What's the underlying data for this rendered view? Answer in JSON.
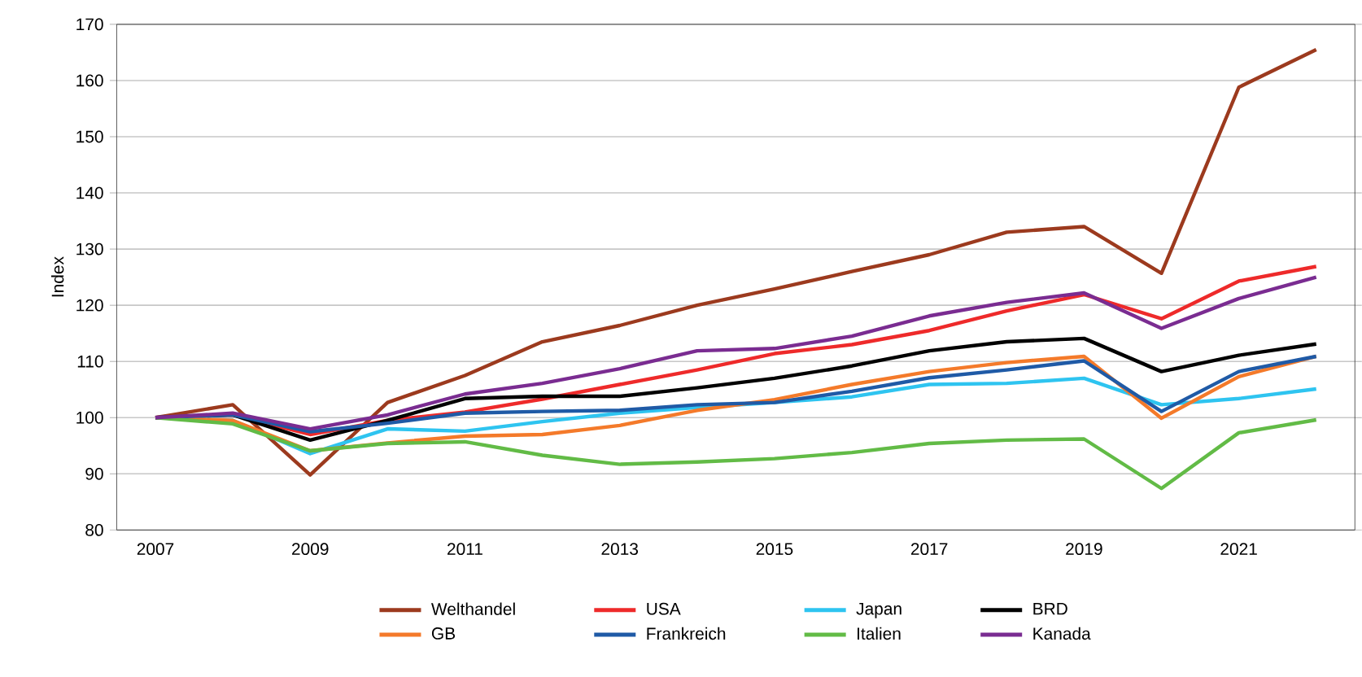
{
  "chart_data": {
    "type": "line",
    "ylabel": "Index",
    "categories": [
      "2007",
      null,
      "2009",
      null,
      "2011",
      null,
      "2013",
      null,
      "2015",
      null,
      "2017",
      null,
      "2019",
      null,
      "2021",
      null
    ],
    "ylim": [
      80,
      170
    ],
    "yticks": [
      80,
      90,
      100,
      110,
      120,
      130,
      140,
      150,
      160,
      170
    ],
    "grid": "y",
    "legend": "bottom",
    "marker": "none",
    "line_style": "solid",
    "series": [
      {
        "name": "Welthandel",
        "color": "#9c3a1e",
        "values": [
          100,
          102.3,
          89.8,
          102.7,
          107.5,
          113.5,
          116.4,
          120,
          122.9,
          126,
          129,
          133,
          134,
          125.7,
          158.8,
          165.5
        ]
      },
      {
        "name": "USA",
        "color": "#ee2a2a",
        "values": [
          100,
          100.5,
          97,
          99.5,
          101,
          103.3,
          105.9,
          108.5,
          111.4,
          113,
          115.5,
          119,
          121.9,
          117.6,
          124.3,
          126.9
        ]
      },
      {
        "name": "Japan",
        "color": "#2ec4f0",
        "values": [
          100,
          99.5,
          93.6,
          98,
          97.6,
          99.3,
          100.8,
          101.8,
          102.7,
          103.7,
          105.9,
          106.1,
          107,
          102.3,
          103.4,
          105.1
        ]
      },
      {
        "name": "BRD",
        "color": "#000000",
        "values": [
          100,
          100.5,
          96,
          99.5,
          103.4,
          103.8,
          103.8,
          105.3,
          107,
          109.2,
          111.9,
          113.5,
          114.1,
          108.2,
          111.1,
          113.1
        ]
      },
      {
        "name": "GB",
        "color": "#f47a2a",
        "values": [
          100,
          99.5,
          94.1,
          95.5,
          96.7,
          97,
          98.6,
          101.3,
          103.2,
          105.9,
          108.2,
          109.8,
          110.9,
          99.9,
          107.3,
          110.9
        ]
      },
      {
        "name": "Frankreich",
        "color": "#1f5aa6",
        "values": [
          100,
          100.5,
          97.5,
          99,
          100.8,
          101.1,
          101.3,
          102.3,
          102.7,
          104.7,
          107.1,
          108.5,
          110.1,
          101.1,
          108.2,
          110.9
        ]
      },
      {
        "name": "Italien",
        "color": "#62bb46",
        "values": [
          100,
          98.9,
          94.1,
          95.4,
          95.7,
          93.3,
          91.7,
          92.1,
          92.7,
          93.8,
          95.4,
          96,
          96.2,
          87.4,
          97.3,
          99.6
        ]
      },
      {
        "name": "Kanada",
        "color": "#7a2c91",
        "values": [
          100,
          100.8,
          98,
          100.5,
          104.2,
          106.1,
          108.7,
          111.9,
          112.3,
          114.5,
          118.1,
          120.5,
          122.2,
          115.9,
          121.2,
          125
        ]
      }
    ]
  }
}
